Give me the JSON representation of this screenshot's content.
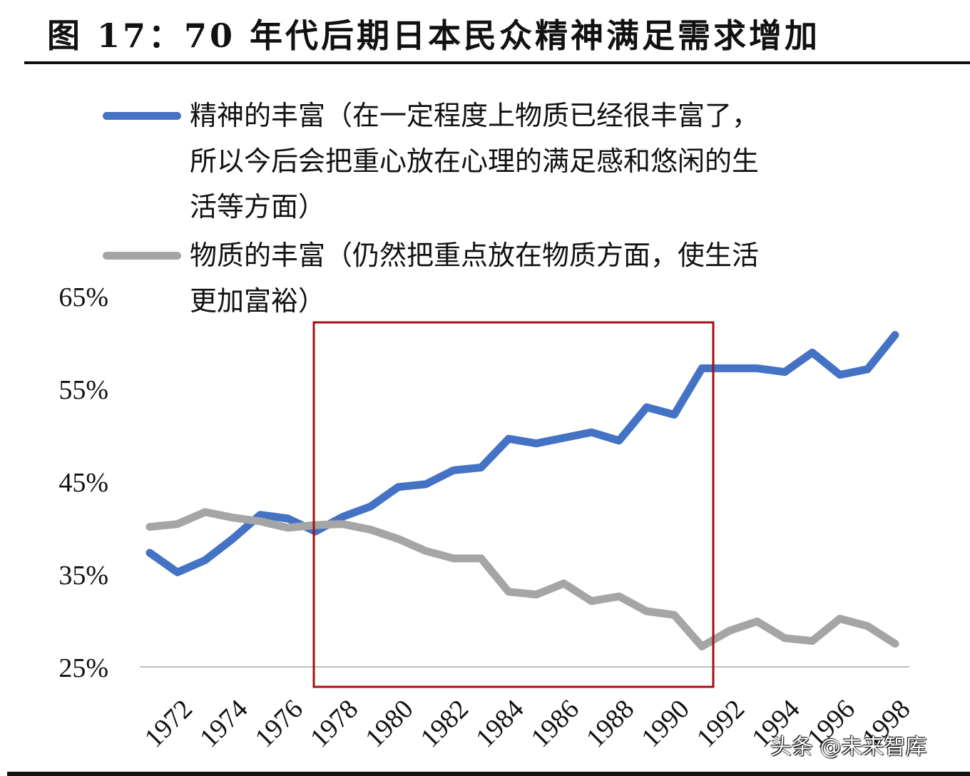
{
  "figure": {
    "title": "图 17：70 年代后期日本民众精神满足需求增加",
    "watermark": "头条 @未来智库"
  },
  "legend": [
    {
      "label": "精神的丰富（在一定程度上物质已经很丰富了，所以今后会把重心放在心理的满足感和悠闲的生活等方面）",
      "lines": [
        "精神的丰富（在一定程度上物质已经很丰富了，",
        "所以今后会把重心放在心理的满足感和悠闲的生",
        "活等方面）"
      ],
      "color": "#4472C4"
    },
    {
      "label": "物质的丰富（仍然把重点放在物质方面，使生活更加富裕）",
      "lines": [
        "物质的丰富（仍然把重点放在物质方面，使生活",
        "更加富裕）"
      ],
      "color": "#A5A5A5"
    }
  ],
  "highlight_box": {
    "color": "#A50F15",
    "from_year": 1978,
    "to_year": 1992
  },
  "chart_data": {
    "type": "line",
    "title": "图 17：70 年代后期日本民众精神满足需求增加",
    "xlabel": "",
    "ylabel": "",
    "x": [
      1972,
      1973,
      1974,
      1975,
      1976,
      1977,
      1978,
      1979,
      1980,
      1981,
      1982,
      1983,
      1984,
      1985,
      1986,
      1987,
      1988,
      1989,
      1990,
      1991,
      1992,
      1993,
      1994,
      1995,
      1996,
      1997,
      1998,
      1999
    ],
    "x_tick_labels": [
      "1972",
      "1974",
      "1976",
      "1978",
      "1980",
      "1982",
      "1984",
      "1986",
      "1988",
      "1990",
      "1992",
      "1994",
      "1996",
      "1998"
    ],
    "y_tick_labels": [
      "25%",
      "35%",
      "45%",
      "55%",
      "65%"
    ],
    "ylim": [
      25,
      65
    ],
    "grid": false,
    "legend_position": "top",
    "series": [
      {
        "name": "精神的丰富（在一定程度上物质已经很丰富了，所以今后会把重心放在心理的满足感和悠闲的生活等方面）",
        "color": "#4472C4",
        "values": [
          37.3,
          35.2,
          36.5,
          38.8,
          41.4,
          41.0,
          39.6,
          41.2,
          42.3,
          44.4,
          44.7,
          46.2,
          46.5,
          49.6,
          49.1,
          49.7,
          50.3,
          49.4,
          53.0,
          52.2,
          57.2,
          57.2,
          57.2,
          56.8,
          58.9,
          56.5,
          57.1,
          60.8
        ]
      },
      {
        "name": "物质的丰富（仍然把重点放在物质方面，使生活更加富裕）",
        "color": "#A5A5A5",
        "values": [
          40.1,
          40.4,
          41.7,
          41.1,
          40.7,
          40.0,
          40.3,
          40.4,
          39.8,
          38.8,
          37.5,
          36.7,
          36.7,
          33.1,
          32.8,
          34.0,
          32.1,
          32.6,
          31.0,
          30.6,
          27.2,
          28.9,
          29.9,
          28.1,
          27.8,
          30.2,
          29.4,
          27.5
        ]
      }
    ],
    "annotations": [
      {
        "type": "rectangle",
        "color": "#A50F15",
        "x_range": [
          1978,
          1992
        ]
      }
    ]
  }
}
